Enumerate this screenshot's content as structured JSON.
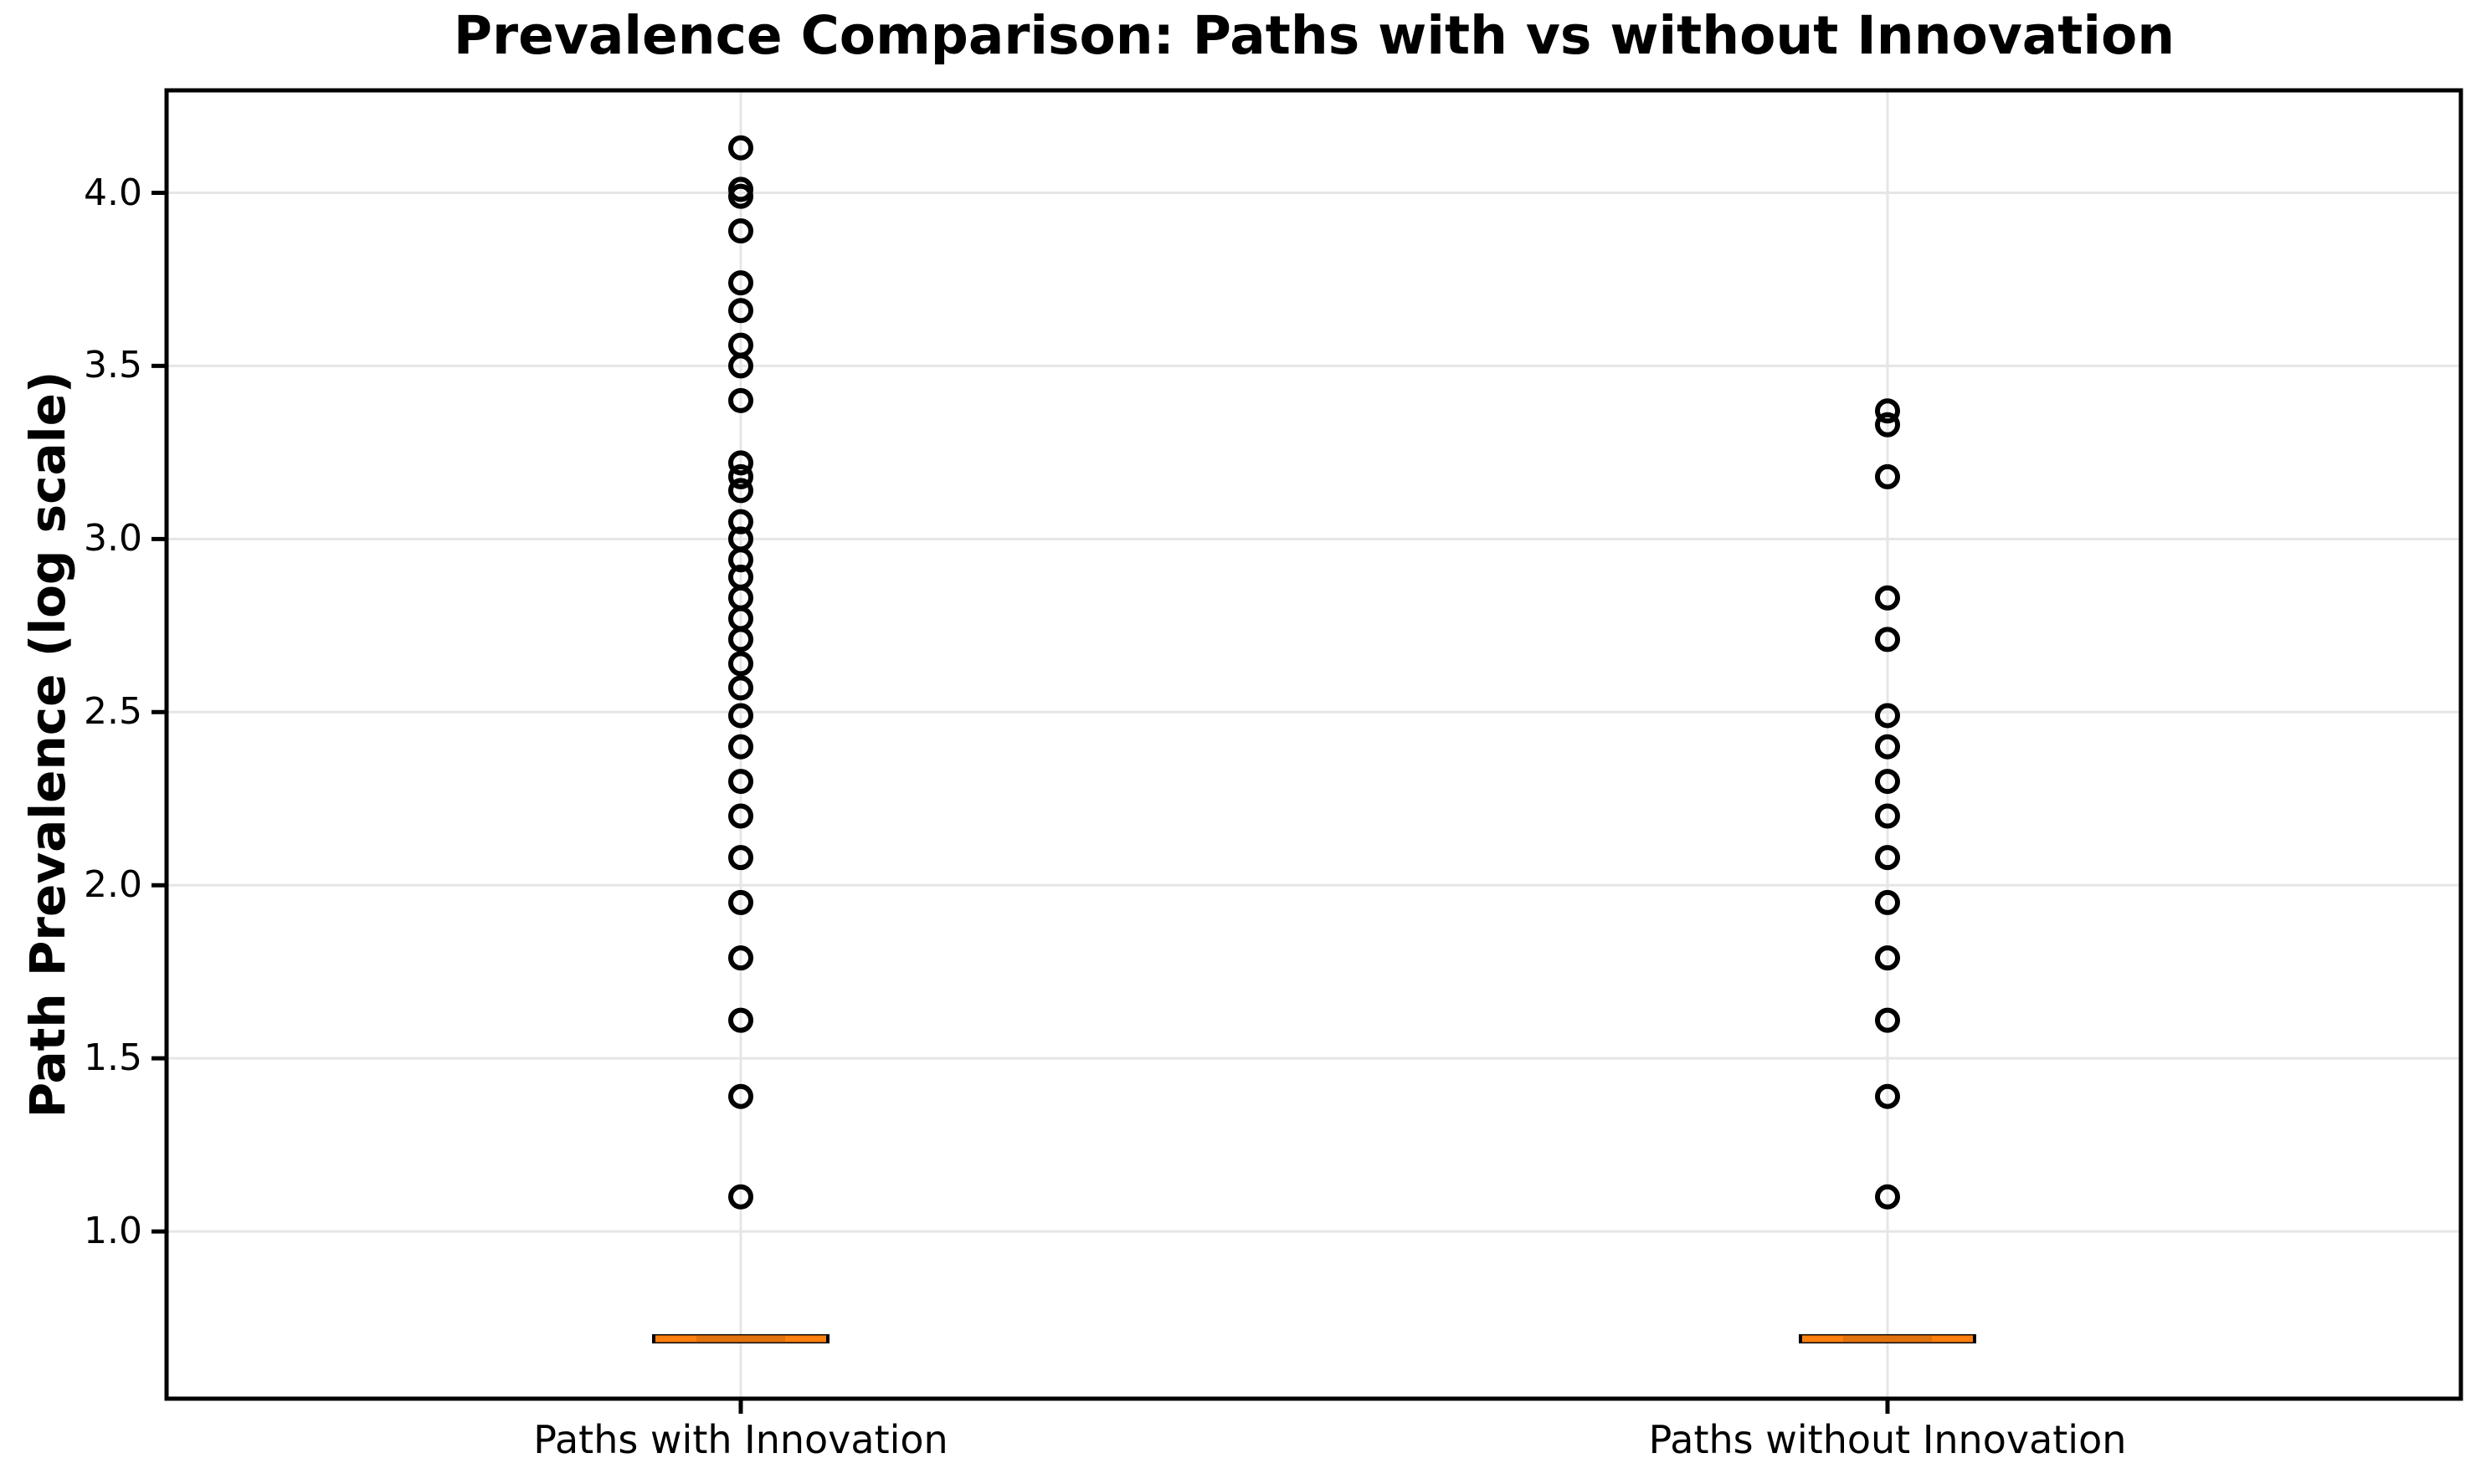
{
  "chart_data": {
    "type": "boxplot",
    "title": "Prevalence Comparison: Paths with vs without Innovation",
    "ylabel": "Path Prevalence (log scale)",
    "xlabel": "",
    "categories": [
      "Paths with Innovation",
      "Paths without Innovation"
    ],
    "y_tick_labels": [
      "1.0",
      "1.5",
      "2.0",
      "2.5",
      "3.0",
      "3.5",
      "4.0"
    ],
    "ylim": [
      0.52,
      4.3
    ],
    "grid": true,
    "legend": false,
    "series": [
      {
        "name": "Paths with Innovation",
        "median": 0.69,
        "q1": 0.69,
        "q3": 0.69,
        "whisker_low": 0.69,
        "whisker_high": 0.69,
        "outliers": [
          4.13,
          4.01,
          3.99,
          3.89,
          3.74,
          3.66,
          3.56,
          3.5,
          3.4,
          3.22,
          3.18,
          3.14,
          3.05,
          3.0,
          2.94,
          2.89,
          2.83,
          2.77,
          2.71,
          2.64,
          2.57,
          2.49,
          2.4,
          2.3,
          2.2,
          2.08,
          1.95,
          1.79,
          1.61,
          1.39,
          1.1
        ]
      },
      {
        "name": "Paths without Innovation",
        "median": 0.69,
        "q1": 0.69,
        "q3": 0.69,
        "whisker_low": 0.69,
        "whisker_high": 0.69,
        "outliers": [
          3.37,
          3.33,
          3.18,
          2.83,
          2.71,
          2.49,
          2.4,
          2.3,
          2.2,
          2.08,
          1.95,
          1.79,
          1.61,
          1.39,
          1.1
        ]
      }
    ],
    "colors": {
      "median": "#ff7f0e",
      "median_overlap": "#e2720c",
      "box_edge": "#000000",
      "marker": "#000000",
      "grid": "#e6e6e6",
      "spine": "#000000",
      "background": "#ffffff"
    }
  }
}
